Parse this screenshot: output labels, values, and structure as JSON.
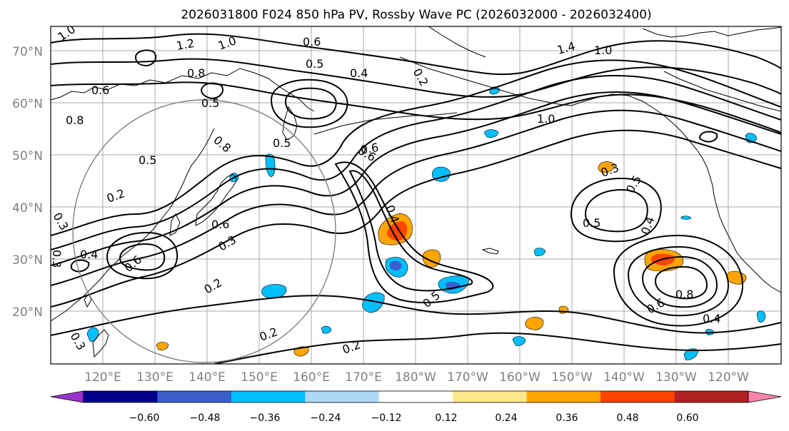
{
  "title": "2026031800 F024 850 hPa PV, Rossby Wave PC (2026032000 - 2026032400)",
  "map": {
    "lat_ticks": [
      "70°N",
      "60°N",
      "50°N",
      "40°N",
      "30°N",
      "20°N"
    ],
    "lon_ticks": [
      "120°E",
      "130°E",
      "140°E",
      "150°E",
      "160°E",
      "170°E",
      "180°W",
      "170°W",
      "160°W",
      "150°W",
      "140°W",
      "130°W",
      "120°W"
    ],
    "contour_labels": [
      "1.0",
      "1.2",
      "1.0",
      "0.6",
      "0.5",
      "0.4",
      "1.4",
      "1.0",
      "0.8",
      "0.6",
      "0.8",
      "0.5",
      "0.5",
      "0.8",
      "0.2",
      "0.3",
      "0.6",
      "0.4",
      "0.6",
      "0.3",
      "0.3",
      "0.2",
      "0.6",
      "0.2",
      "0.2",
      "0.5",
      "0.3",
      "0.5",
      "0.5",
      "0.4",
      "0.8",
      "0.6",
      "0.4",
      "0.3",
      "1.0",
      "0.5",
      "0.2",
      "0.6",
      "0.4"
    ],
    "colors": {
      "grid": "#a9a9a9",
      "coast": "#000000",
      "contour": "#000000",
      "circle": "#808080"
    }
  },
  "colorbar": {
    "ticks": [
      "−0.60",
      "−0.48",
      "−0.36",
      "−0.24",
      "−0.12",
      "0.12",
      "0.24",
      "0.36",
      "0.48",
      "0.60"
    ],
    "colors": [
      "#9932cc",
      "#00008b",
      "#3a5fcd",
      "#00bfff",
      "#add8f6",
      "#ffffff",
      "#ffe88a",
      "#ffa500",
      "#ff4500",
      "#b22222",
      "#ff85b0"
    ]
  }
}
